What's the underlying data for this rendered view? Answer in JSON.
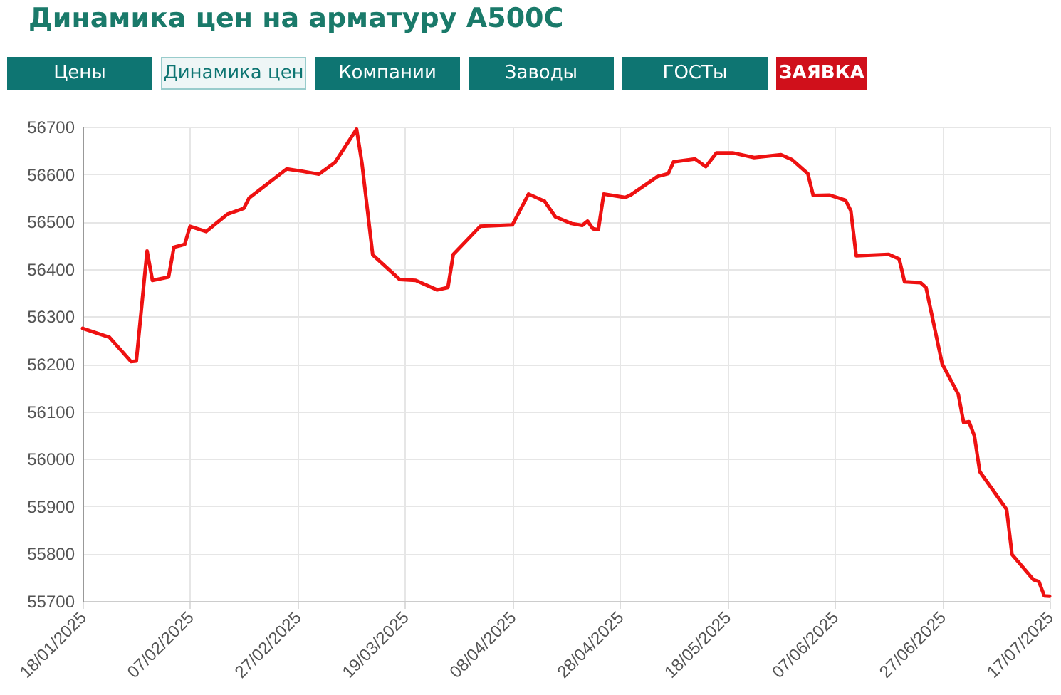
{
  "chart_data": {
    "type": "line",
    "title": "Динамика цен на арматуру А500С",
    "annotations": [
      "Цены",
      "Динамика цен",
      "Компании",
      "Заводы",
      "ГОСТы",
      "ЗАЯВКА"
    ],
    "x": [
      "2025-01-18",
      "2025-01-23",
      "2025-01-27",
      "2025-01-28",
      "2025-01-30",
      "2025-01-31",
      "2025-02-03",
      "2025-02-04",
      "2025-02-06",
      "2025-02-07",
      "2025-02-10",
      "2025-02-14",
      "2025-02-17",
      "2025-02-18",
      "2025-02-25",
      "2025-02-28",
      "2025-03-03",
      "2025-03-06",
      "2025-03-10",
      "2025-03-11",
      "2025-03-13",
      "2025-03-18",
      "2025-03-21",
      "2025-03-25",
      "2025-03-27",
      "2025-03-28",
      "2025-04-02",
      "2025-04-08",
      "2025-04-11",
      "2025-04-14",
      "2025-04-16",
      "2025-04-19",
      "2025-04-21",
      "2025-04-22",
      "2025-04-23",
      "2025-04-24",
      "2025-04-25",
      "2025-04-29",
      "2025-04-30",
      "2025-05-05",
      "2025-05-07",
      "2025-05-08",
      "2025-05-12",
      "2025-05-14",
      "2025-05-16",
      "2025-05-19",
      "2025-05-23",
      "2025-05-28",
      "2025-05-30",
      "2025-06-02",
      "2025-06-03",
      "2025-06-06",
      "2025-06-09",
      "2025-06-10",
      "2025-06-11",
      "2025-06-17",
      "2025-06-19",
      "2025-06-20",
      "2025-06-23",
      "2025-06-24",
      "2025-06-27",
      "2025-06-30",
      "2025-07-01",
      "2025-07-02",
      "2025-07-03",
      "2025-07-04",
      "2025-07-09",
      "2025-07-10",
      "2025-07-14",
      "2025-07-15",
      "2025-07-16",
      "2025-07-17"
    ],
    "series": [
      {
        "color": "#ee1111",
        "values": [
          56275,
          56256,
          56205,
          56206,
          56438,
          56376,
          56383,
          56446,
          56452,
          56490,
          56479,
          56516,
          56528,
          56550,
          56611,
          56606,
          56600,
          56625,
          56695,
          56623,
          56430,
          56378,
          56376,
          56356,
          56361,
          56431,
          56490,
          56493,
          56558,
          56543,
          56510,
          56496,
          56492,
          56501,
          56485,
          56483,
          56558,
          56551,
          56556,
          56595,
          56601,
          56626,
          56632,
          56616,
          56645,
          56645,
          56635,
          56641,
          56631,
          56601,
          56555,
          56556,
          56545,
          56523,
          56428,
          56431,
          56421,
          56373,
          56371,
          56361,
          56200,
          56136,
          56076,
          56078,
          56048,
          55973,
          55893,
          55798,
          55745,
          55741,
          55711,
          55710
        ]
      }
    ],
    "xlim": [
      "2025-01-18",
      "2025-07-17"
    ],
    "xticks": [
      {
        "value": "2025-01-18",
        "label": "18/01/2025"
      },
      {
        "value": "2025-02-07",
        "label": "07/02/2025"
      },
      {
        "value": "2025-02-27",
        "label": "27/02/2025"
      },
      {
        "value": "2025-03-19",
        "label": "19/03/2025"
      },
      {
        "value": "2025-04-08",
        "label": "08/04/2025"
      },
      {
        "value": "2025-04-28",
        "label": "28/04/2025"
      },
      {
        "value": "2025-05-18",
        "label": "18/05/2025"
      },
      {
        "value": "2025-06-07",
        "label": "07/06/2025"
      },
      {
        "value": "2025-06-27",
        "label": "27/06/2025"
      },
      {
        "value": "2025-07-17",
        "label": "17/07/2025"
      }
    ],
    "ylim": [
      55700,
      56700
    ],
    "yticks": [
      55700,
      55800,
      55900,
      56000,
      56100,
      56200,
      56300,
      56400,
      56500,
      56600,
      56700
    ],
    "grid": true,
    "marker": "none",
    "line_style": "solid"
  }
}
